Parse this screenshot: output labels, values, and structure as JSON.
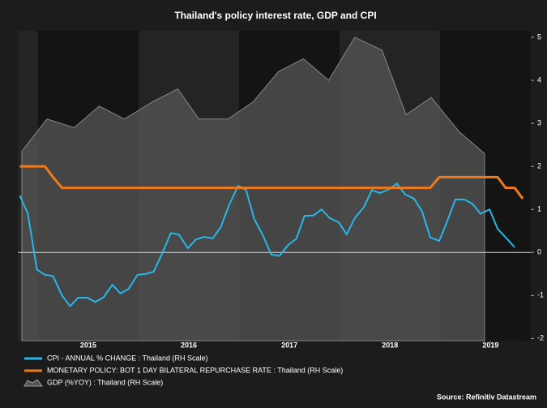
{
  "chart_data": {
    "type": "line",
    "title": "Thailand's policy interest rate, GDP and CPI",
    "source": "Source: Refinitiv Datastream",
    "x": [
      2014.82,
      2014.9,
      2014.99,
      2015.07,
      2015.15,
      2015.24,
      2015.32,
      2015.4,
      2015.49,
      2015.57,
      2015.65,
      2015.74,
      2015.82,
      2015.9,
      2015.99,
      2016.07,
      2016.15,
      2016.24,
      2016.32,
      2016.4,
      2016.49,
      2016.57,
      2016.65,
      2016.74,
      2016.82,
      2016.9,
      2016.99,
      2017.07,
      2017.15,
      2017.24,
      2017.32,
      2017.4,
      2017.49,
      2017.57,
      2017.65,
      2017.74,
      2017.82,
      2017.9,
      2017.99,
      2018.07,
      2018.15,
      2018.24,
      2018.32,
      2018.4,
      2018.49,
      2018.57,
      2018.65,
      2018.74,
      2018.82,
      2018.9,
      2018.99,
      2019.07,
      2019.15,
      2019.24,
      2019.32,
      2019.4,
      2019.49,
      2019.57,
      2019.65,
      2019.74,
      2019.82
    ],
    "series": [
      {
        "name": "CPI - ANNUAL % CHANGE : Thailand (RH Scale)",
        "color": "#29b6e8",
        "kind": "line",
        "values": [
          1.32,
          0.9,
          -0.4,
          -0.52,
          -0.55,
          -1.0,
          -1.25,
          -1.05,
          -1.05,
          -1.15,
          -1.05,
          -0.75,
          -0.95,
          -0.85,
          -0.52,
          -0.5,
          -0.45,
          0.0,
          0.45,
          0.42,
          0.1,
          0.3,
          0.36,
          0.33,
          0.6,
          1.1,
          1.55,
          1.45,
          0.78,
          0.38,
          -0.05,
          -0.08,
          0.18,
          0.32,
          0.85,
          0.86,
          1.0,
          0.8,
          0.7,
          0.42,
          0.8,
          1.05,
          1.45,
          1.38,
          1.47,
          1.6,
          1.35,
          1.25,
          0.95,
          0.35,
          0.27,
          0.73,
          1.23,
          1.23,
          1.13,
          0.9,
          1.0,
          0.55,
          0.35,
          0.12,
          null
        ]
      },
      {
        "name": "MONETARY POLICY: BOT 1 DAY BILATERAL REPURCHASE RATE : Thailand (RH Scale)",
        "color": "#f07a1a",
        "kind": "line",
        "values": [
          2.0,
          2.0,
          2.0,
          2.0,
          1.75,
          1.5,
          1.5,
          1.5,
          1.5,
          1.5,
          1.5,
          1.5,
          1.5,
          1.5,
          1.5,
          1.5,
          1.5,
          1.5,
          1.5,
          1.5,
          1.5,
          1.5,
          1.5,
          1.5,
          1.5,
          1.5,
          1.5,
          1.5,
          1.5,
          1.5,
          1.5,
          1.5,
          1.5,
          1.5,
          1.5,
          1.5,
          1.5,
          1.5,
          1.5,
          1.5,
          1.5,
          1.5,
          1.5,
          1.5,
          1.5,
          1.5,
          1.5,
          1.5,
          1.5,
          1.5,
          1.75,
          1.75,
          1.75,
          1.75,
          1.75,
          1.75,
          1.75,
          1.75,
          1.5,
          1.5,
          1.25
        ]
      },
      {
        "name": "GDP (%YOY) : Thailand (RH Scale)",
        "color": "#555555",
        "kind": "area",
        "x": [
          2014.84,
          2015.09,
          2015.36,
          2015.61,
          2015.86,
          2016.14,
          2016.39,
          2016.6,
          2016.89,
          2017.14,
          2017.39,
          2017.64,
          2017.89,
          2018.15,
          2018.42,
          2018.66,
          2018.91,
          2019.19,
          2019.44
        ],
        "values": [
          2.35,
          3.1,
          2.9,
          3.4,
          3.1,
          3.5,
          3.8,
          3.1,
          3.1,
          3.5,
          4.2,
          4.5,
          4.0,
          5.0,
          4.7,
          3.2,
          3.6,
          2.8,
          2.3
        ]
      }
    ],
    "xlim": [
      2014.8,
      2019.9
    ],
    "xticks": [
      {
        "value": 2015.5,
        "label": "2015"
      },
      {
        "value": 2016.5,
        "label": "2016"
      },
      {
        "value": 2017.5,
        "label": "2017"
      },
      {
        "value": 2018.5,
        "label": "2018"
      },
      {
        "value": 2019.5,
        "label": "2019"
      }
    ],
    "ylim": [
      -2.05,
      5.15
    ],
    "yticks": [
      -2,
      -1,
      0,
      1,
      2,
      3,
      4,
      5
    ]
  }
}
